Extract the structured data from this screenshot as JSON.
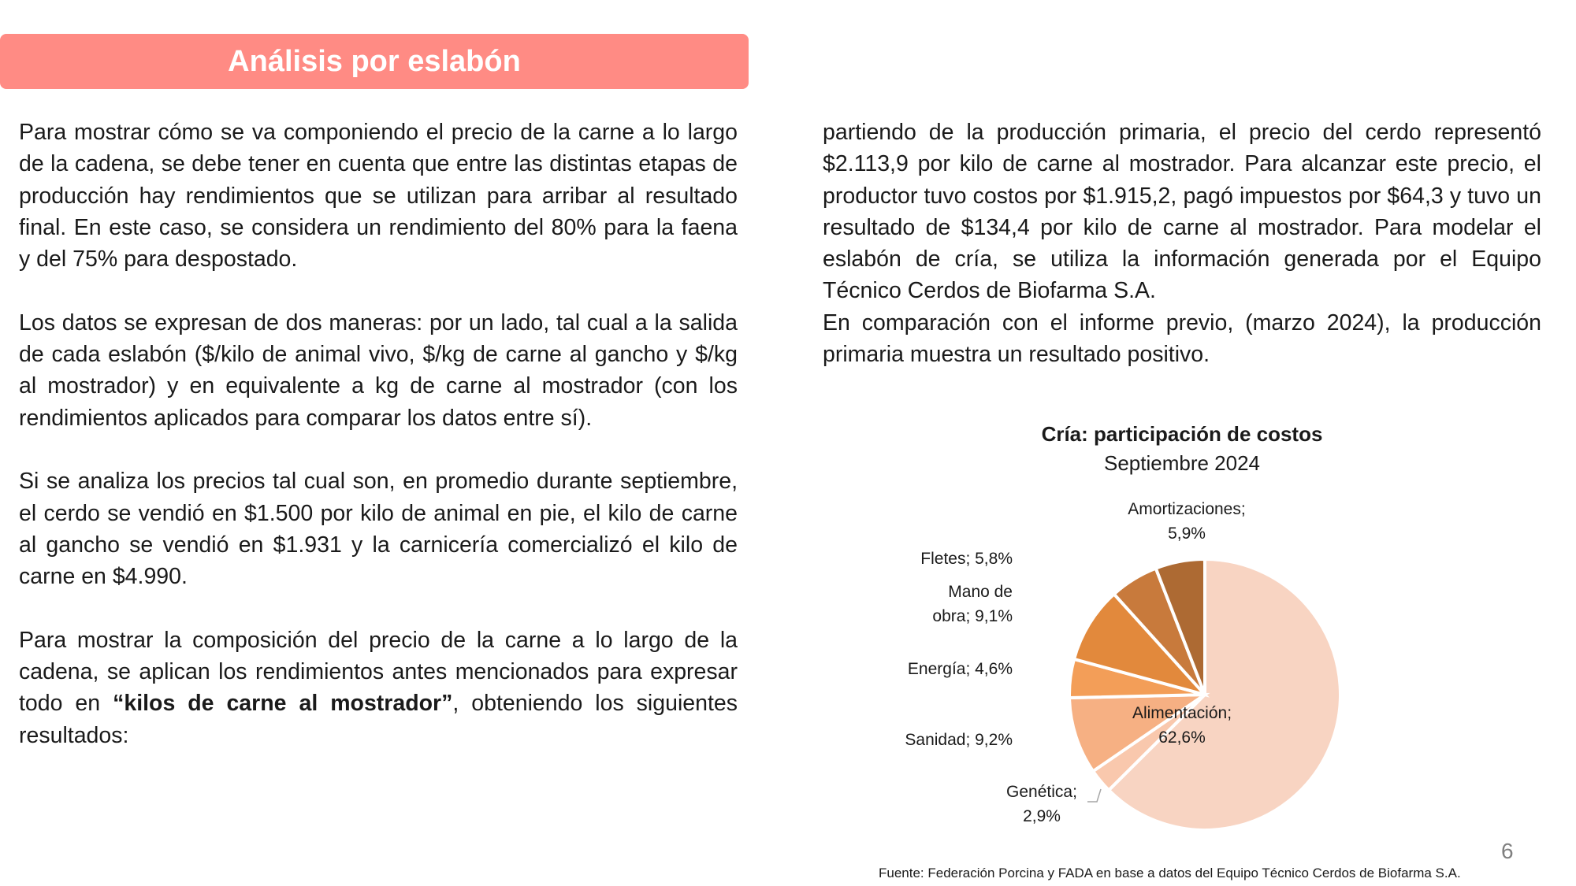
{
  "header": {
    "title": "Análisis por eslabón"
  },
  "left_column": {
    "p1": "Para mostrar cómo se va componiendo el precio de la carne a lo largo de la cadena, se debe tener en cuenta que entre las distintas etapas de producción hay rendimientos que se utilizan para arribar al resultado final. En este caso, se considera un rendimiento del 80% para la faena y del 75% para despostado.",
    "p2": "Los datos se expresan de dos maneras: por un lado, tal cual a la salida de cada eslabón ($/kilo de animal vivo, $/kg de carne al gancho y $/kg al mostrador) y en equivalente a kg de carne al mostrador (con los rendimientos aplicados para comparar los datos entre sí).",
    "p3": "Si se analiza los precios tal cual son, en promedio durante septiembre, el cerdo se vendió en $1.500 por kilo de animal en pie, el kilo de carne al gancho se vendió en $1.931 y la carnicería comercializó el kilo de carne en $4.990.",
    "p4_before": "Para mostrar la composición del precio de la carne a lo largo de la cadena, se aplican los rendimientos antes mencionados para expresar todo en ",
    "p4_bold": "“kilos de carne al mostrador”",
    "p4_after": ", obteniendo los siguientes resultados:"
  },
  "right_column": {
    "p1": "partiendo de la producción primaria, el precio del cerdo representó $2.113,9 por kilo de carne al mostrador. Para alcanzar este precio, el productor tuvo costos por $1.915,2, pagó impuestos por $64,3 y tuvo un resultado de $134,4 por kilo de carne al mostrador. Para modelar el eslabón de cría, se utiliza la información generada por el Equipo Técnico Cerdos de Biofarma S.A.",
    "p2": "En comparación con el informe previo, (marzo 2024), la producción primaria muestra un resultado positivo."
  },
  "chart_data": {
    "type": "pie",
    "title": "Cría: participación de costos",
    "subtitle": "Septiembre 2024",
    "slices": [
      {
        "name": "Alimentación",
        "value": 62.6,
        "label_lines": [
          "Alimentación;",
          "62,6%"
        ],
        "color": "#f8d4c2"
      },
      {
        "name": "Genética",
        "value": 2.9,
        "label_lines": [
          "Genética;",
          "2,9%"
        ],
        "color": "#f9c8ad"
      },
      {
        "name": "Sanidad",
        "value": 9.2,
        "label_lines": [
          "Sanidad; 9,2%"
        ],
        "color": "#f6b083"
      },
      {
        "name": "Energía",
        "value": 4.6,
        "label_lines": [
          "Energía; 4,6%"
        ],
        "color": "#f39e58"
      },
      {
        "name": "Mano de obra",
        "value": 9.1,
        "label_lines": [
          "Mano de",
          "obra; 9,1%"
        ],
        "color": "#e2893c"
      },
      {
        "name": "Fletes",
        "value": 5.8,
        "label_lines": [
          "Fletes; 5,8%"
        ],
        "color": "#c87a3c"
      },
      {
        "name": "Amortizaciones",
        "value": 5.9,
        "label_lines": [
          "Amortizaciones;",
          "5,9%"
        ],
        "color": "#ad6a33"
      }
    ],
    "legend": "none",
    "start": "top, clockwise"
  },
  "footer": {
    "page_number": "6",
    "source": "Fuente: Federación Porcina y FADA en base a datos del Equipo Técnico Cerdos de Biofarma S.A."
  }
}
